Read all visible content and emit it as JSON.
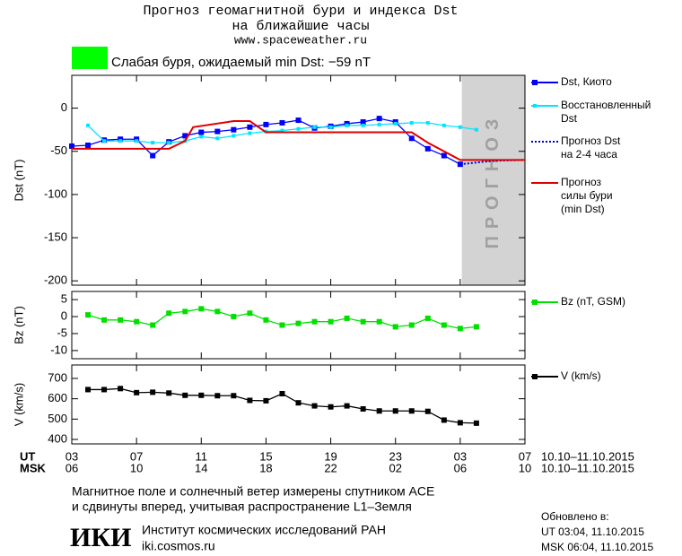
{
  "header": {
    "title": "Прогноз геомагнитной бури и индекса Dst",
    "title2": "на ближайшие часы",
    "url": "www.spaceweather.ru"
  },
  "chart_data": [
    {
      "type": "line",
      "status": "Слабая буря, ожидаемый min Dst: −59 nT",
      "status_color": "#00ff00",
      "y_label": "Dst (nT)",
      "xlim": [
        0,
        28
      ],
      "ylim": [
        -205,
        38
      ],
      "yticks": [
        0,
        -50,
        -100,
        -150,
        -200
      ],
      "forecast_region": [
        24.1,
        28
      ],
      "forecast_label": "ПРОГНОЗ",
      "forecast_color": "#d3d3d3",
      "series": [
        {
          "name": "Dst, Киото",
          "color": "#0000ff",
          "marker": "square",
          "style": "solid",
          "x": [
            0,
            1,
            2,
            3,
            4,
            5,
            6,
            7,
            8,
            9,
            10,
            11,
            12,
            13,
            14,
            15,
            16,
            17,
            18,
            19,
            20,
            21,
            22,
            23,
            24
          ],
          "values": [
            -44,
            -43,
            -37,
            -36,
            -36,
            -55,
            -39,
            -32,
            -28,
            -27,
            -25,
            -22,
            -19,
            -17,
            -14,
            -23,
            -21,
            -18,
            -16,
            -12,
            -16,
            -35,
            -47,
            -55,
            -65
          ]
        },
        {
          "name": "Восстановленный\nDst",
          "color": "#00e5ff",
          "marker": "small-square",
          "style": "solid",
          "x": [
            1,
            2,
            3,
            4,
            5,
            6,
            7,
            8,
            9,
            10,
            11,
            12,
            13,
            14,
            15,
            16,
            17,
            18,
            19,
            20,
            21,
            22,
            23,
            24,
            25
          ],
          "values": [
            -20,
            -38,
            -38,
            -38,
            -40,
            -40,
            -38,
            -33,
            -35,
            -32,
            -29,
            -27,
            -26,
            -24,
            -22,
            -22,
            -20,
            -20,
            -19,
            -18,
            -17,
            -17,
            -20,
            -22,
            -25
          ]
        },
        {
          "name": "Прогноз Dst\nна 2-4 часа",
          "color": "#0000c0",
          "marker": "none",
          "style": "dotted",
          "x": [
            24,
            26,
            28
          ],
          "values": [
            -65,
            -61,
            -60
          ]
        },
        {
          "name": "Прогноз\nсилы бури\n(min Dst)",
          "color": "#e00000",
          "marker": "none",
          "style": "solid",
          "x": [
            0,
            6,
            7,
            7.5,
            10,
            11,
            12,
            21,
            22,
            24,
            28
          ],
          "values": [
            -47,
            -47,
            -38,
            -22,
            -15,
            -15,
            -28,
            -28,
            -40,
            -60,
            -60
          ]
        }
      ]
    },
    {
      "type": "line",
      "y_label": "Bz (nT)",
      "xlim": [
        0,
        28
      ],
      "ylim": [
        -12.4,
        7.4
      ],
      "yticks": [
        5,
        0,
        -5,
        -10
      ],
      "series": [
        {
          "name": "Bz (nT, GSM)",
          "color": "#00e000",
          "marker": "square",
          "style": "solid",
          "x": [
            1,
            2,
            3,
            4,
            5,
            6,
            7,
            8,
            9,
            10,
            11,
            12,
            13,
            14,
            15,
            16,
            17,
            18,
            19,
            20,
            21,
            22,
            23,
            24,
            25
          ],
          "values": [
            0.5,
            -1,
            -1,
            -1.5,
            -2.5,
            1,
            1.5,
            2.3,
            1.5,
            0,
            1,
            -1,
            -2.5,
            -2,
            -1.5,
            -1.5,
            -0.5,
            -1.5,
            -1.5,
            -3,
            -2.5,
            -0.5,
            -2.5,
            -3.5,
            -3
          ]
        }
      ]
    },
    {
      "type": "line",
      "y_label": "V (km/s)",
      "xlim": [
        0,
        28
      ],
      "ylim": [
        378,
        766
      ],
      "yticks": [
        700,
        600,
        500,
        400
      ],
      "xticks": [
        {
          "value": 0,
          "label": "03"
        },
        {
          "value": 4,
          "label": "07"
        },
        {
          "value": 8,
          "label": "11"
        },
        {
          "value": 12,
          "label": "15"
        },
        {
          "value": 16,
          "label": "19"
        },
        {
          "value": 20,
          "label": "23"
        },
        {
          "value": 24,
          "label": "03"
        },
        {
          "value": 28,
          "label": "07"
        }
      ],
      "xticks_msk": [
        {
          "value": 0,
          "label": "06"
        },
        {
          "value": 4,
          "label": "10"
        },
        {
          "value": 8,
          "label": "14"
        },
        {
          "value": 12,
          "label": "18"
        },
        {
          "value": 16,
          "label": "22"
        },
        {
          "value": 20,
          "label": "02"
        },
        {
          "value": 24,
          "label": "06"
        },
        {
          "value": 28,
          "label": "10"
        }
      ],
      "x_row_labels": [
        "UT",
        "MSK"
      ],
      "date_range": [
        "10.10–11.10.2015",
        "10.10–11.10.2015"
      ],
      "series": [
        {
          "name": "V (km/s)",
          "color": "#000000",
          "marker": "square",
          "style": "solid",
          "x": [
            1,
            2,
            3,
            4,
            5,
            6,
            7,
            8,
            9,
            10,
            11,
            12,
            13,
            14,
            15,
            16,
            17,
            18,
            19,
            20,
            21,
            22,
            23,
            24,
            25
          ],
          "values": [
            645,
            645,
            650,
            630,
            632,
            628,
            617,
            617,
            615,
            615,
            592,
            590,
            625,
            580,
            565,
            560,
            565,
            550,
            540,
            540,
            540,
            538,
            495,
            482,
            480
          ]
        }
      ]
    }
  ],
  "footer": {
    "note1": "Магнитное поле и солнечный ветер измерены спутником ACE",
    "note2": "и сдвинуты вперед, учитывая распространение L1–Земля",
    "logo": "ИКИ",
    "institute": "Институт космических исследований РАН",
    "site": "iki.cosmos.ru",
    "updated": "Обновлено в:",
    "updated_ut": "UT  03:04, 11.10.2015",
    "updated_msk": "MSK 06:04, 11.10.2015"
  }
}
